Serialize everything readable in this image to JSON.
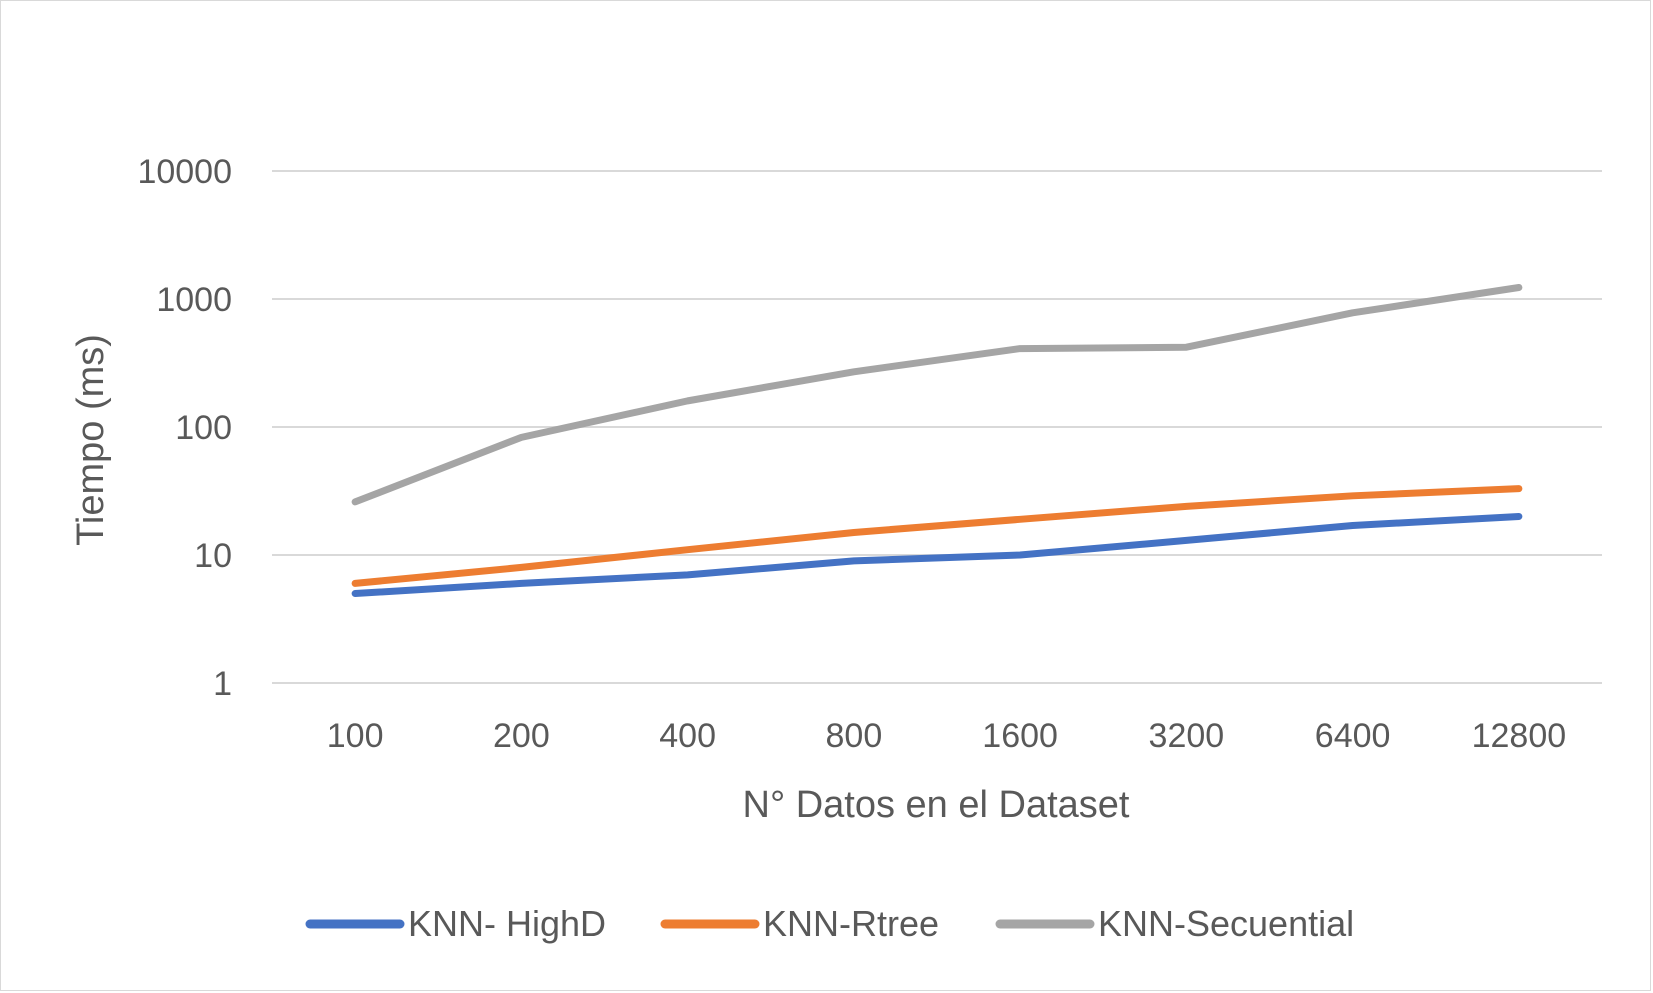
{
  "chart_data": {
    "type": "line",
    "title": "",
    "xlabel": "N° Datos en el Dataset",
    "ylabel": "Tiempo (ms)",
    "categories": [
      "100",
      "200",
      "400",
      "800",
      "1600",
      "3200",
      "6400",
      "12800"
    ],
    "y_scale": "log",
    "ylim": [
      1,
      10000
    ],
    "y_ticks": [
      "1",
      "10",
      "100",
      "1000",
      "10000"
    ],
    "grid": true,
    "legend_position": "bottom",
    "series": [
      {
        "name": "KNN- HighD",
        "color": "#4472c4",
        "values": [
          5,
          6,
          7,
          9,
          10,
          13,
          17,
          20
        ]
      },
      {
        "name": "KNN-Rtree",
        "color": "#ed7d31",
        "values": [
          6,
          8,
          11,
          15,
          19,
          24,
          29,
          33
        ]
      },
      {
        "name": "KNN-Secuential",
        "color": "#a5a5a5",
        "values": [
          26,
          83,
          160,
          270,
          410,
          420,
          780,
          1230
        ]
      }
    ]
  }
}
